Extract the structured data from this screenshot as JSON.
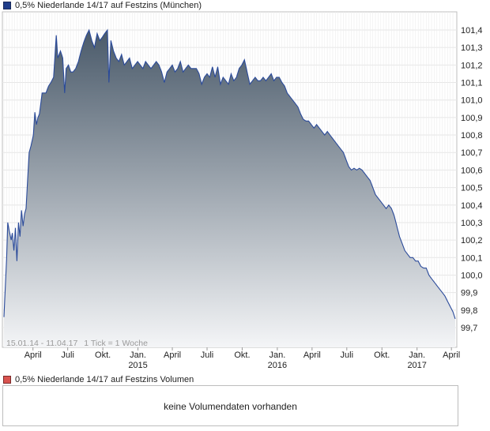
{
  "legend_price": {
    "label": "0,5% Niederlande 14/17 auf Festzins (München)",
    "color": "#1f3d8a"
  },
  "legend_volume": {
    "label": "0,5% Niederlande 14/17 auf Festzins Volumen",
    "color": "#d9534f"
  },
  "volume_message": "keine Volumendaten vorhanden",
  "chart_data": {
    "type": "area",
    "caption_range": "15.01.14 - 11.04.17",
    "caption_tick": "1 Tick = 1 Woche",
    "ylim": [
      99.62,
      101.48
    ],
    "y_ticks": [
      "101,4",
      "101,3",
      "101,2",
      "101,1",
      "101,0",
      "100,9",
      "100,8",
      "100,7",
      "100,6",
      "100,5",
      "100,4",
      "100,3",
      "100,2",
      "100,1",
      "100,0",
      "99,9",
      "99,8",
      "99,7"
    ],
    "y_tick_values": [
      101.4,
      101.3,
      101.2,
      101.1,
      101.0,
      100.9,
      100.8,
      100.7,
      100.6,
      100.5,
      100.4,
      100.3,
      100.2,
      100.1,
      100.0,
      99.9,
      99.8,
      99.7
    ],
    "x_ticks": [
      {
        "label": "April",
        "year": "",
        "date": "2014-04-01"
      },
      {
        "label": "Juli",
        "year": "",
        "date": "2014-07-01"
      },
      {
        "label": "Okt.",
        "year": "",
        "date": "2014-10-01"
      },
      {
        "label": "Jan.",
        "year": "2015",
        "date": "2015-01-01"
      },
      {
        "label": "April",
        "year": "",
        "date": "2015-04-01"
      },
      {
        "label": "Juli",
        "year": "",
        "date": "2015-07-01"
      },
      {
        "label": "Okt.",
        "year": "",
        "date": "2015-10-01"
      },
      {
        "label": "Jan.",
        "year": "2016",
        "date": "2016-01-01"
      },
      {
        "label": "April",
        "year": "",
        "date": "2016-04-01"
      },
      {
        "label": "Juli",
        "year": "",
        "date": "2016-07-01"
      },
      {
        "label": "Okt.",
        "year": "",
        "date": "2016-10-01"
      },
      {
        "label": "Jan.",
        "year": "2017",
        "date": "2017-01-01"
      },
      {
        "label": "April",
        "year": "",
        "date": "2017-04-01"
      }
    ],
    "x_range": [
      "2014-01-15",
      "2017-04-11"
    ],
    "series": [
      {
        "line_color": "#2a4a9a",
        "fill_top": "#4a5a6a",
        "fill_bottom": "#f4f5f7",
        "points": [
          [
            "2014-01-15",
            99.76
          ],
          [
            "2014-01-18",
            99.9
          ],
          [
            "2014-01-22",
            100.1
          ],
          [
            "2014-01-25",
            100.3
          ],
          [
            "2014-01-29",
            100.25
          ],
          [
            "2014-02-03",
            100.2
          ],
          [
            "2014-02-06",
            100.24
          ],
          [
            "2014-02-10",
            100.14
          ],
          [
            "2014-02-14",
            100.27
          ],
          [
            "2014-02-18",
            100.08
          ],
          [
            "2014-02-22",
            100.3
          ],
          [
            "2014-02-26",
            100.22
          ],
          [
            "2014-03-02",
            100.37
          ],
          [
            "2014-03-06",
            100.28
          ],
          [
            "2014-03-10",
            100.35
          ],
          [
            "2014-03-14",
            100.38
          ],
          [
            "2014-03-18",
            100.55
          ],
          [
            "2014-03-22",
            100.7
          ],
          [
            "2014-03-27",
            100.74
          ],
          [
            "2014-04-02",
            100.8
          ],
          [
            "2014-04-06",
            100.93
          ],
          [
            "2014-04-10",
            100.86
          ],
          [
            "2014-04-14",
            100.9
          ],
          [
            "2014-04-18",
            100.92
          ],
          [
            "2014-04-25",
            101.04
          ],
          [
            "2014-05-05",
            101.04
          ],
          [
            "2014-05-12",
            101.08
          ],
          [
            "2014-05-18",
            101.1
          ],
          [
            "2014-05-25",
            101.13
          ],
          [
            "2014-06-01",
            101.37
          ],
          [
            "2014-06-05",
            101.24
          ],
          [
            "2014-06-12",
            101.28
          ],
          [
            "2014-06-18",
            101.24
          ],
          [
            "2014-06-23",
            101.04
          ],
          [
            "2014-06-27",
            101.18
          ],
          [
            "2014-07-03",
            101.2
          ],
          [
            "2014-07-09",
            101.16
          ],
          [
            "2014-07-15",
            101.16
          ],
          [
            "2014-07-22",
            101.18
          ],
          [
            "2014-07-29",
            101.22
          ],
          [
            "2014-08-05",
            101.28
          ],
          [
            "2014-08-12",
            101.33
          ],
          [
            "2014-08-19",
            101.37
          ],
          [
            "2014-08-26",
            101.4
          ],
          [
            "2014-09-02",
            101.34
          ],
          [
            "2014-09-09",
            101.3
          ],
          [
            "2014-09-16",
            101.38
          ],
          [
            "2014-09-23",
            101.34
          ],
          [
            "2014-09-30",
            101.36
          ],
          [
            "2014-10-06",
            101.38
          ],
          [
            "2014-10-13",
            101.4
          ],
          [
            "2014-10-17",
            101.1
          ],
          [
            "2014-10-22",
            101.34
          ],
          [
            "2014-10-29",
            101.28
          ],
          [
            "2014-11-05",
            101.24
          ],
          [
            "2014-11-12",
            101.22
          ],
          [
            "2014-11-19",
            101.26
          ],
          [
            "2014-11-26",
            101.2
          ],
          [
            "2014-12-03",
            101.22
          ],
          [
            "2014-12-10",
            101.24
          ],
          [
            "2014-12-17",
            101.18
          ],
          [
            "2014-12-24",
            101.2
          ],
          [
            "2014-12-31",
            101.22
          ],
          [
            "2015-01-07",
            101.2
          ],
          [
            "2015-01-14",
            101.18
          ],
          [
            "2015-01-21",
            101.22
          ],
          [
            "2015-01-28",
            101.2
          ],
          [
            "2015-02-04",
            101.18
          ],
          [
            "2015-02-11",
            101.2
          ],
          [
            "2015-02-18",
            101.22
          ],
          [
            "2015-02-25",
            101.2
          ],
          [
            "2015-03-04",
            101.16
          ],
          [
            "2015-03-11",
            101.1
          ],
          [
            "2015-03-18",
            101.16
          ],
          [
            "2015-03-25",
            101.18
          ],
          [
            "2015-04-01",
            101.2
          ],
          [
            "2015-04-08",
            101.16
          ],
          [
            "2015-04-15",
            101.18
          ],
          [
            "2015-04-22",
            101.22
          ],
          [
            "2015-04-29",
            101.16
          ],
          [
            "2015-05-06",
            101.18
          ],
          [
            "2015-05-13",
            101.2
          ],
          [
            "2015-05-20",
            101.18
          ],
          [
            "2015-05-27",
            101.18
          ],
          [
            "2015-06-03",
            101.18
          ],
          [
            "2015-06-10",
            101.15
          ],
          [
            "2015-06-17",
            101.09
          ],
          [
            "2015-06-24",
            101.13
          ],
          [
            "2015-07-01",
            101.15
          ],
          [
            "2015-07-08",
            101.13
          ],
          [
            "2015-07-15",
            101.19
          ],
          [
            "2015-07-22",
            101.13
          ],
          [
            "2015-07-29",
            101.19
          ],
          [
            "2015-08-05",
            101.09
          ],
          [
            "2015-08-12",
            101.13
          ],
          [
            "2015-08-19",
            101.11
          ],
          [
            "2015-08-26",
            101.09
          ],
          [
            "2015-09-02",
            101.15
          ],
          [
            "2015-09-09",
            101.11
          ],
          [
            "2015-09-16",
            101.13
          ],
          [
            "2015-09-23",
            101.18
          ],
          [
            "2015-09-30",
            101.2
          ],
          [
            "2015-10-07",
            101.23
          ],
          [
            "2015-10-14",
            101.16
          ],
          [
            "2015-10-21",
            101.09
          ],
          [
            "2015-10-28",
            101.11
          ],
          [
            "2015-11-04",
            101.13
          ],
          [
            "2015-11-11",
            101.11
          ],
          [
            "2015-11-18",
            101.11
          ],
          [
            "2015-11-25",
            101.13
          ],
          [
            "2015-12-02",
            101.11
          ],
          [
            "2015-12-09",
            101.13
          ],
          [
            "2015-12-16",
            101.15
          ],
          [
            "2015-12-23",
            101.11
          ],
          [
            "2015-12-30",
            101.13
          ],
          [
            "2016-01-06",
            101.13
          ],
          [
            "2016-01-13",
            101.1
          ],
          [
            "2016-01-20",
            101.08
          ],
          [
            "2016-01-27",
            101.04
          ],
          [
            "2016-02-03",
            101.02
          ],
          [
            "2016-02-10",
            101.0
          ],
          [
            "2016-02-17",
            100.98
          ],
          [
            "2016-02-24",
            100.96
          ],
          [
            "2016-03-02",
            100.92
          ],
          [
            "2016-03-09",
            100.89
          ],
          [
            "2016-03-16",
            100.88
          ],
          [
            "2016-03-23",
            100.88
          ],
          [
            "2016-03-30",
            100.86
          ],
          [
            "2016-04-06",
            100.84
          ],
          [
            "2016-04-13",
            100.86
          ],
          [
            "2016-04-20",
            100.84
          ],
          [
            "2016-04-27",
            100.82
          ],
          [
            "2016-05-04",
            100.8
          ],
          [
            "2016-05-11",
            100.82
          ],
          [
            "2016-05-18",
            100.8
          ],
          [
            "2016-05-25",
            100.78
          ],
          [
            "2016-06-01",
            100.76
          ],
          [
            "2016-06-08",
            100.74
          ],
          [
            "2016-06-15",
            100.72
          ],
          [
            "2016-06-22",
            100.7
          ],
          [
            "2016-06-29",
            100.66
          ],
          [
            "2016-07-06",
            100.62
          ],
          [
            "2016-07-13",
            100.6
          ],
          [
            "2016-07-20",
            100.61
          ],
          [
            "2016-07-27",
            100.6
          ],
          [
            "2016-08-03",
            100.61
          ],
          [
            "2016-08-10",
            100.6
          ],
          [
            "2016-08-17",
            100.58
          ],
          [
            "2016-08-24",
            100.56
          ],
          [
            "2016-08-31",
            100.54
          ],
          [
            "2016-09-07",
            100.5
          ],
          [
            "2016-09-14",
            100.46
          ],
          [
            "2016-09-21",
            100.44
          ],
          [
            "2016-09-28",
            100.42
          ],
          [
            "2016-10-05",
            100.4
          ],
          [
            "2016-10-12",
            100.38
          ],
          [
            "2016-10-19",
            100.4
          ],
          [
            "2016-10-26",
            100.38
          ],
          [
            "2016-11-02",
            100.34
          ],
          [
            "2016-11-09",
            100.28
          ],
          [
            "2016-11-16",
            100.22
          ],
          [
            "2016-11-23",
            100.18
          ],
          [
            "2016-11-30",
            100.14
          ],
          [
            "2016-12-07",
            100.12
          ],
          [
            "2016-12-14",
            100.1
          ],
          [
            "2016-12-21",
            100.1
          ],
          [
            "2016-12-28",
            100.08
          ],
          [
            "2017-01-04",
            100.08
          ],
          [
            "2017-01-11",
            100.05
          ],
          [
            "2017-01-18",
            100.04
          ],
          [
            "2017-01-25",
            100.04
          ],
          [
            "2017-02-01",
            100.0
          ],
          [
            "2017-02-08",
            99.98
          ],
          [
            "2017-02-15",
            99.96
          ],
          [
            "2017-02-22",
            99.94
          ],
          [
            "2017-03-01",
            99.92
          ],
          [
            "2017-03-08",
            99.9
          ],
          [
            "2017-03-15",
            99.88
          ],
          [
            "2017-03-22",
            99.85
          ],
          [
            "2017-03-29",
            99.82
          ],
          [
            "2017-04-05",
            99.79
          ],
          [
            "2017-04-11",
            99.75
          ]
        ]
      }
    ]
  }
}
